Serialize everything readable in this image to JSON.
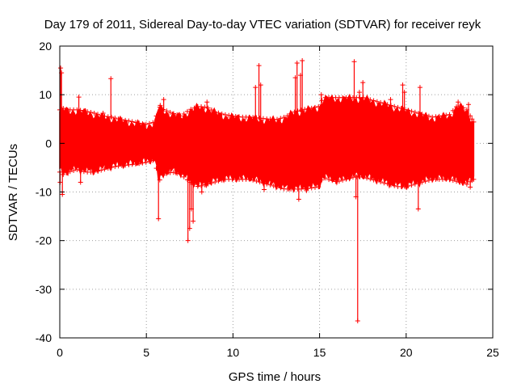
{
  "chart_data": {
    "type": "scatter",
    "title": "Day 179 of 2011, Sidereal Day-to-day VTEC variation (SDTVAR) for receiver reyk",
    "xlabel": "GPS time / hours",
    "ylabel": "SDTVAR / TECUs",
    "xlim": [
      0,
      25
    ],
    "ylim": [
      -40,
      20
    ],
    "xticks": [
      0,
      5,
      10,
      15,
      20,
      25
    ],
    "yticks": [
      -40,
      -30,
      -20,
      -10,
      0,
      10,
      20
    ],
    "grid": true,
    "marker": "+",
    "color": "#ff0000",
    "series": [
      {
        "name": "reyk",
        "envelope": {
          "x": [
            0.0,
            0.2,
            0.5,
            1.0,
            1.5,
            2.0,
            2.5,
            3.0,
            3.5,
            4.0,
            4.5,
            5.0,
            5.5,
            5.7,
            6.0,
            6.5,
            7.0,
            7.5,
            8.0,
            8.5,
            9.0,
            9.5,
            10.0,
            10.5,
            11.0,
            11.5,
            12.0,
            12.5,
            13.0,
            13.5,
            14.0,
            14.5,
            15.0,
            15.2,
            15.5,
            16.0,
            16.5,
            17.0,
            17.5,
            18.0,
            18.5,
            19.0,
            19.5,
            20.0,
            20.5,
            21.0,
            21.5,
            22.0,
            22.5,
            23.0,
            23.5,
            23.9
          ],
          "upper": [
            6.5,
            6.8,
            6.5,
            6.5,
            6.2,
            5.8,
            5.2,
            5.0,
            4.5,
            4.2,
            3.8,
            3.5,
            4.0,
            7.2,
            6.5,
            5.8,
            5.2,
            6.5,
            7.2,
            7.0,
            6.0,
            5.5,
            5.2,
            5.0,
            5.0,
            4.8,
            4.6,
            4.5,
            5.0,
            6.0,
            6.5,
            6.8,
            7.2,
            9.0,
            9.0,
            9.0,
            9.0,
            9.0,
            9.0,
            8.5,
            8.0,
            7.5,
            7.0,
            6.5,
            6.0,
            5.5,
            5.0,
            5.2,
            5.5,
            7.5,
            6.5,
            4.0
          ],
          "lower": [
            -5.5,
            -6.0,
            -5.5,
            -5.0,
            -5.5,
            -5.5,
            -5.0,
            -4.5,
            -4.2,
            -4.0,
            -3.8,
            -3.5,
            -3.0,
            -7.5,
            -6.0,
            -5.5,
            -6.0,
            -7.5,
            -8.5,
            -8.0,
            -7.5,
            -7.0,
            -7.0,
            -7.0,
            -7.0,
            -7.5,
            -8.0,
            -8.5,
            -9.0,
            -9.0,
            -9.0,
            -8.8,
            -8.5,
            -6.5,
            -7.0,
            -7.5,
            -7.0,
            -6.5,
            -6.5,
            -7.0,
            -7.5,
            -8.0,
            -8.5,
            -8.5,
            -8.0,
            -7.5,
            -7.0,
            -7.0,
            -7.0,
            -7.5,
            -8.0,
            -7.0
          ]
        },
        "spikes": [
          [
            0.05,
            15.5
          ],
          [
            0.1,
            14.5
          ],
          [
            0.02,
            -8.0
          ],
          [
            0.15,
            -10.5
          ],
          [
            1.1,
            9.5
          ],
          [
            1.2,
            -8.0
          ],
          [
            2.5,
            6.2
          ],
          [
            2.95,
            13.3
          ],
          [
            2.9,
            -5.0
          ],
          [
            5.7,
            -15.5
          ],
          [
            5.8,
            7.8
          ],
          [
            6.0,
            9.0
          ],
          [
            7.4,
            -20.0
          ],
          [
            7.5,
            -17.5
          ],
          [
            7.6,
            -13.5
          ],
          [
            7.7,
            -16.0
          ],
          [
            8.2,
            -10.0
          ],
          [
            8.5,
            8.5
          ],
          [
            8.8,
            -7.0
          ],
          [
            11.3,
            11.5
          ],
          [
            11.5,
            16.0
          ],
          [
            11.6,
            12.0
          ],
          [
            11.8,
            -9.5
          ],
          [
            13.6,
            13.5
          ],
          [
            13.7,
            16.5
          ],
          [
            13.9,
            14.0
          ],
          [
            14.0,
            17.0
          ],
          [
            13.8,
            -11.5
          ],
          [
            15.1,
            10.0
          ],
          [
            16.4,
            8.5
          ],
          [
            17.0,
            16.8
          ],
          [
            17.1,
            -11.0
          ],
          [
            17.2,
            -36.5
          ],
          [
            17.3,
            10.5
          ],
          [
            17.5,
            12.5
          ],
          [
            17.4,
            -6.0
          ],
          [
            19.1,
            9.0
          ],
          [
            19.8,
            12.0
          ],
          [
            19.9,
            10.5
          ],
          [
            20.0,
            -9.0
          ],
          [
            20.7,
            -13.5
          ],
          [
            20.8,
            11.5
          ],
          [
            23.0,
            8.5
          ],
          [
            23.3,
            -8.0
          ],
          [
            23.6,
            8.0
          ],
          [
            23.7,
            -9.0
          ],
          [
            23.8,
            5.0
          ]
        ]
      }
    ]
  }
}
